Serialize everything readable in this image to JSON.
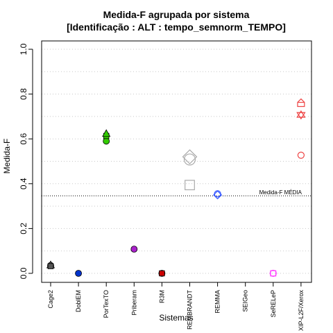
{
  "chart_data": {
    "type": "scatter",
    "title": [
      "Medida-F agrupada por sistema",
      "[Identificação : ALT : tempo_semnorm_TEMPO]"
    ],
    "xlabel": "Sistemas",
    "ylabel": "Medida-F",
    "ylim": [
      0,
      1
    ],
    "yticks": [
      "0.0",
      "0.2",
      "0.4",
      "0.6",
      "0.8",
      "1.0"
    ],
    "categories": [
      "Cage2",
      "DoblEM",
      "PorTexTO",
      "Priberam",
      "R3M",
      "REMBRANDT",
      "REMMA",
      "SEIGeo",
      "SeRELeP",
      "XIP-L2F/Xerox"
    ],
    "grid": "horizontal dotted",
    "reference_line": {
      "label": "Medida-F MÉDIA",
      "value": 0.346
    },
    "points": [
      {
        "category": "Cage2",
        "y": 0.035,
        "shape": "circle",
        "color": "#555555",
        "fill": true
      },
      {
        "category": "Cage2",
        "y": 0.038,
        "shape": "triangle",
        "color": "#555555",
        "fill": true
      },
      {
        "category": "Cage2",
        "y": 0.032,
        "shape": "square",
        "color": "#555555",
        "fill": true
      },
      {
        "category": "DoblEM",
        "y": 0.0,
        "shape": "circle",
        "color": "#0033cc",
        "fill": true
      },
      {
        "category": "PorTexTO",
        "y": 0.59,
        "shape": "circle",
        "color": "#33cc00",
        "fill": true
      },
      {
        "category": "PorTexTO",
        "y": 0.613,
        "shape": "square",
        "color": "#33cc00",
        "fill": true
      },
      {
        "category": "PorTexTO",
        "y": 0.624,
        "shape": "triangle",
        "color": "#33cc00",
        "fill": true
      },
      {
        "category": "Priberam",
        "y": 0.108,
        "shape": "circle",
        "color": "#aa22cc",
        "fill": true
      },
      {
        "category": "R3M",
        "y": 0.0,
        "shape": "circle",
        "color": "#cc0000",
        "fill": true
      },
      {
        "category": "R3M",
        "y": 0.0,
        "shape": "square",
        "color": "#cc0000",
        "fill": true
      },
      {
        "category": "REMBRANDT",
        "y": 0.52,
        "shape": "diamond",
        "color": "#aaaaaa",
        "fill": false,
        "large": true
      },
      {
        "category": "REMBRANDT",
        "y": 0.508,
        "shape": "circle",
        "color": "#aaaaaa",
        "fill": false,
        "large": true
      },
      {
        "category": "REMBRANDT",
        "y": 0.394,
        "shape": "square",
        "color": "#aaaaaa",
        "fill": false,
        "large": true
      },
      {
        "category": "REMMA",
        "y": 0.355,
        "shape": "circle",
        "color": "#3355ff",
        "fill": false
      },
      {
        "category": "REMMA",
        "y": 0.35,
        "shape": "diamond",
        "color": "#3355ff",
        "fill": false
      },
      {
        "category": "SeRELeP",
        "y": 0.0,
        "shape": "square",
        "color": "#ff44ff",
        "fill": false
      },
      {
        "category": "SeRELeP",
        "y": 0.0,
        "shape": "circle",
        "color": "#ff44ff",
        "fill": false
      },
      {
        "category": "XIP-L2F/Xerox",
        "y": 0.76,
        "shape": "house",
        "color": "#ee4444",
        "fill": false
      },
      {
        "category": "XIP-L2F/Xerox",
        "y": 0.707,
        "shape": "star6",
        "color": "#ee4444",
        "fill": false
      },
      {
        "category": "XIP-L2F/Xerox",
        "y": 0.527,
        "shape": "circle",
        "color": "#ee4444",
        "fill": false
      }
    ]
  }
}
